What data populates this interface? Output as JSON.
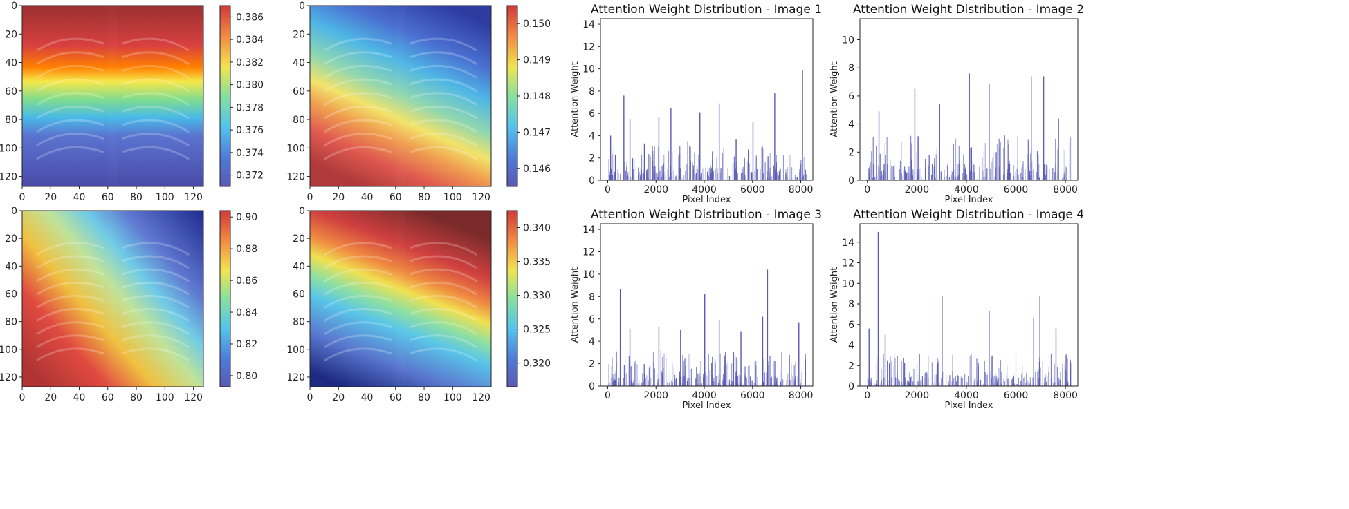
{
  "colors": {
    "bar": "#5a5ab5",
    "jet": [
      "#00007f",
      "#0000ff",
      "#007fff",
      "#00ffff",
      "#7fff7f",
      "#ffff00",
      "#ff7f00",
      "#ff0000",
      "#7f0000"
    ]
  },
  "chart_data": {
    "heatmaps": [
      {
        "name": "heatmap-1",
        "type": "heatmap",
        "x_ticks": [
          0,
          20,
          40,
          60,
          80,
          100,
          120
        ],
        "y_ticks": [
          0,
          20,
          40,
          60,
          80,
          100,
          120
        ],
        "xlim": [
          0,
          127
        ],
        "ylim": [
          0,
          127
        ],
        "colorbar": {
          "min": 0.371,
          "max": 0.387,
          "ticks": [
            "0.372",
            "0.374",
            "0.376",
            "0.378",
            "0.380",
            "0.382",
            "0.384",
            "0.386"
          ],
          "tick_values": [
            0.372,
            0.374,
            0.376,
            0.378,
            0.38,
            0.382,
            0.384,
            0.386
          ]
        },
        "pattern": "horizontal band: high (red) rows 0-45, decreasing to low (blue) rows 90-127"
      },
      {
        "name": "heatmap-2",
        "type": "heatmap",
        "x_ticks": [
          0,
          20,
          40,
          60,
          80,
          100,
          120
        ],
        "y_ticks": [
          0,
          20,
          40,
          60,
          80,
          100,
          120
        ],
        "xlim": [
          0,
          127
        ],
        "ylim": [
          0,
          127
        ],
        "colorbar": {
          "min": 0.1455,
          "max": 0.1505,
          "ticks": [
            "0.146",
            "0.147",
            "0.148",
            "0.149",
            "0.150"
          ],
          "tick_values": [
            0.146,
            0.147,
            0.148,
            0.149,
            0.15
          ]
        },
        "pattern": "diagonal: low (blue) upper-right, high (red) bottom rows"
      },
      {
        "name": "heatmap-3",
        "type": "heatmap",
        "x_ticks": [
          0,
          20,
          40,
          60,
          80,
          100,
          120
        ],
        "y_ticks": [
          0,
          20,
          40,
          60,
          80,
          100,
          120
        ],
        "xlim": [
          0,
          127
        ],
        "ylim": [
          0,
          127
        ],
        "colorbar": {
          "min": 0.793,
          "max": 0.904,
          "ticks": [
            "0.80",
            "0.82",
            "0.84",
            "0.86",
            "0.88",
            "0.90"
          ],
          "tick_values": [
            0.8,
            0.82,
            0.84,
            0.86,
            0.88,
            0.9
          ]
        },
        "pattern": "diagonal: high (red) lower-left, low (blue) upper-right"
      },
      {
        "name": "heatmap-4",
        "type": "heatmap",
        "x_ticks": [
          0,
          20,
          40,
          60,
          80,
          100,
          120
        ],
        "y_ticks": [
          0,
          20,
          40,
          60,
          80,
          100,
          120
        ],
        "xlim": [
          0,
          127
        ],
        "ylim": [
          0,
          127
        ],
        "colorbar": {
          "min": 0.3165,
          "max": 0.3425,
          "ticks": [
            "0.320",
            "0.325",
            "0.330",
            "0.335",
            "0.340"
          ],
          "tick_values": [
            0.32,
            0.325,
            0.33,
            0.335,
            0.34
          ]
        },
        "pattern": "high (red) rows 0-40, decreasing diagonally toward lower-left (blue)"
      }
    ],
    "bar_charts": [
      {
        "name": "attention-chart-1",
        "type": "bar",
        "title": "Attention Weight Distribution - Image 1",
        "xlabel": "Pixel Index",
        "ylabel": "Attention Weight",
        "xlim": [
          -300,
          8500
        ],
        "ylim": [
          0,
          14.5
        ],
        "x_ticks": [
          0,
          2000,
          4000,
          6000,
          8000
        ],
        "y_ticks": [
          0,
          2,
          4,
          6,
          8,
          10,
          12,
          14
        ],
        "peaks": [
          [
            100,
            4.0
          ],
          [
            300,
            2.3
          ],
          [
            650,
            7.6
          ],
          [
            900,
            5.5
          ],
          [
            1500,
            3.3
          ],
          [
            2100,
            5.7
          ],
          [
            2600,
            6.5
          ],
          [
            3300,
            3.5
          ],
          [
            3800,
            6.1
          ],
          [
            4600,
            6.9
          ],
          [
            5300,
            3.7
          ],
          [
            6000,
            5.2
          ],
          [
            6900,
            7.8
          ],
          [
            8050,
            9.9
          ]
        ]
      },
      {
        "name": "attention-chart-2",
        "type": "bar",
        "title": "Attention Weight Distribution - Image 2",
        "xlabel": "Pixel Index",
        "ylabel": "Attention Weight",
        "xlim": [
          -300,
          8500
        ],
        "ylim": [
          0,
          11.5
        ],
        "x_ticks": [
          0,
          2000,
          4000,
          6000,
          8000
        ],
        "y_ticks": [
          0,
          2,
          4,
          6,
          8,
          10
        ],
        "peaks": [
          [
            450,
            4.9
          ],
          [
            1900,
            6.5
          ],
          [
            2900,
            5.4
          ],
          [
            4100,
            7.6
          ],
          [
            4900,
            6.9
          ],
          [
            6600,
            7.4
          ],
          [
            7100,
            7.4
          ],
          [
            7700,
            4.4
          ]
        ]
      },
      {
        "name": "attention-chart-3",
        "type": "bar",
        "title": "Attention Weight Distribution - Image 3",
        "xlabel": "Pixel Index",
        "ylabel": "Attention Weight",
        "xlim": [
          -300,
          8500
        ],
        "ylim": [
          0,
          14.5
        ],
        "x_ticks": [
          0,
          2000,
          4000,
          6000,
          8000
        ],
        "y_ticks": [
          0,
          2,
          4,
          6,
          8,
          10,
          12,
          14
        ],
        "peaks": [
          [
            500,
            8.7
          ],
          [
            900,
            5.1
          ],
          [
            2100,
            5.3
          ],
          [
            3000,
            5.0
          ],
          [
            4000,
            8.2
          ],
          [
            4600,
            5.9
          ],
          [
            5500,
            4.9
          ],
          [
            6400,
            6.2
          ],
          [
            6600,
            10.4
          ],
          [
            7900,
            5.7
          ]
        ]
      },
      {
        "name": "attention-chart-4",
        "type": "bar",
        "title": "Attention Weight Distribution - Image 4",
        "xlabel": "Pixel Index",
        "ylabel": "Attention Weight",
        "xlim": [
          -300,
          8500
        ],
        "ylim": [
          0,
          15.8
        ],
        "x_ticks": [
          0,
          2000,
          4000,
          6000,
          8000
        ],
        "y_ticks": [
          0,
          2,
          4,
          6,
          8,
          10,
          12,
          14
        ],
        "peaks": [
          [
            50,
            5.6
          ],
          [
            420,
            15.0
          ],
          [
            700,
            5.0
          ],
          [
            3000,
            8.8
          ],
          [
            4900,
            7.3
          ],
          [
            6700,
            6.6
          ],
          [
            6950,
            8.8
          ],
          [
            7600,
            5.6
          ]
        ]
      }
    ]
  }
}
